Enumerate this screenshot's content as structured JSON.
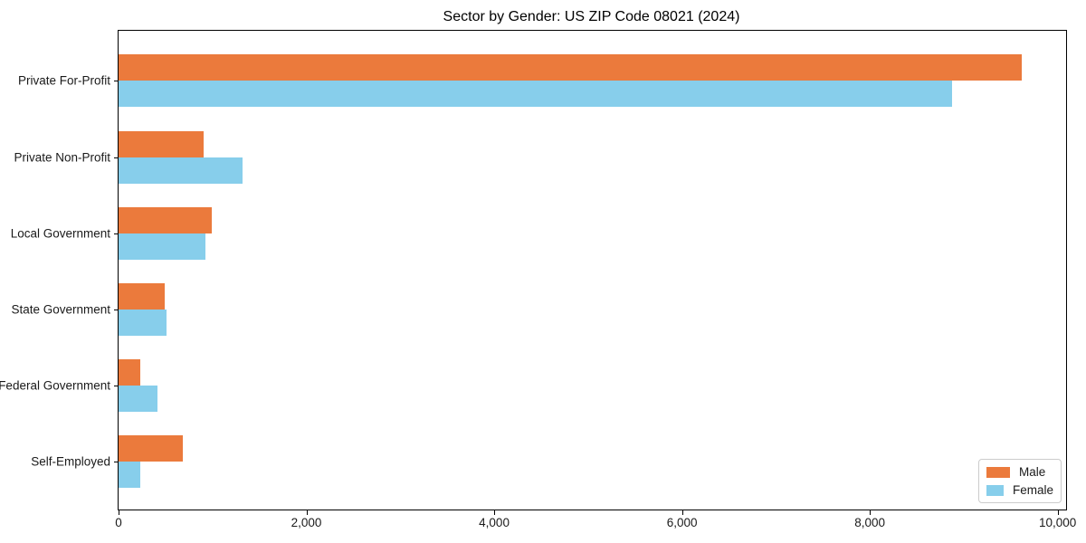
{
  "chart_data": {
    "type": "bar",
    "orientation": "horizontal",
    "title": "Sector by Gender: US ZIP Code 08021 (2024)",
    "categories": [
      "Private For-Profit",
      "Private Non-Profit",
      "Local Government",
      "State Government",
      "Federal Government",
      "Self-Employed"
    ],
    "series": [
      {
        "name": "Male",
        "color": "#eb7a3c",
        "values": [
          9615,
          910,
          995,
          495,
          235,
          685
        ]
      },
      {
        "name": "Female",
        "color": "#87ceeb",
        "values": [
          8875,
          1320,
          920,
          515,
          410,
          230
        ]
      }
    ],
    "xlabel": "",
    "ylabel": "",
    "xlim": [
      0,
      10090
    ],
    "x_ticks": [
      {
        "value": 0,
        "label": "0"
      },
      {
        "value": 2000,
        "label": "2,000"
      },
      {
        "value": 4000,
        "label": "4,000"
      },
      {
        "value": 6000,
        "label": "6,000"
      },
      {
        "value": 8000,
        "label": "8,000"
      },
      {
        "value": 10000,
        "label": "10,000"
      }
    ],
    "grid": false,
    "legend_position": "lower right"
  }
}
